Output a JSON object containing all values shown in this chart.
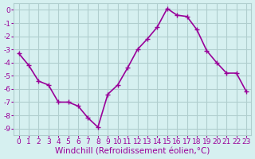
{
  "x": [
    0,
    1,
    2,
    3,
    4,
    5,
    6,
    7,
    8,
    9,
    10,
    11,
    12,
    13,
    14,
    15,
    16,
    17,
    18,
    19,
    20,
    21,
    22,
    23
  ],
  "y": [
    -3.3,
    -4.2,
    -5.4,
    -5.7,
    -7.0,
    -7.0,
    -7.3,
    -8.2,
    -8.9,
    -6.4,
    -5.7,
    -4.4,
    -3.0,
    -2.2,
    -1.3,
    0.1,
    -0.4,
    -0.5,
    -1.5,
    -3.1,
    -4.0,
    -4.8,
    -4.8,
    -6.2
  ],
  "line_color": "#990099",
  "marker": "+",
  "bg_color": "#d6f0f0",
  "grid_color": "#b0cece",
  "xlabel": "Windchill (Refroidissement éolien,°C)",
  "xlabel_color": "#990099",
  "ylim": [
    -9.5,
    0.5
  ],
  "xlim": [
    -0.5,
    23.5
  ],
  "yticks": [
    0,
    -1,
    -2,
    -3,
    -4,
    -5,
    -6,
    -7,
    -8,
    -9
  ],
  "ytick_labels": [
    "0",
    "-1",
    "-2",
    "-3",
    "-4",
    "-5",
    "-6",
    "-7",
    "-8",
    "-9"
  ],
  "xtick_labels": [
    "0",
    "1",
    "2",
    "3",
    "4",
    "5",
    "6",
    "7",
    "8",
    "9",
    "10",
    "11",
    "12",
    "13",
    "14",
    "15",
    "16",
    "17",
    "18",
    "19",
    "20",
    "21",
    "22",
    "23"
  ],
  "tick_color": "#990099",
  "tick_fontsize": 6.5,
  "xlabel_fontsize": 7.5,
  "line_width": 1.2,
  "marker_size": 4
}
